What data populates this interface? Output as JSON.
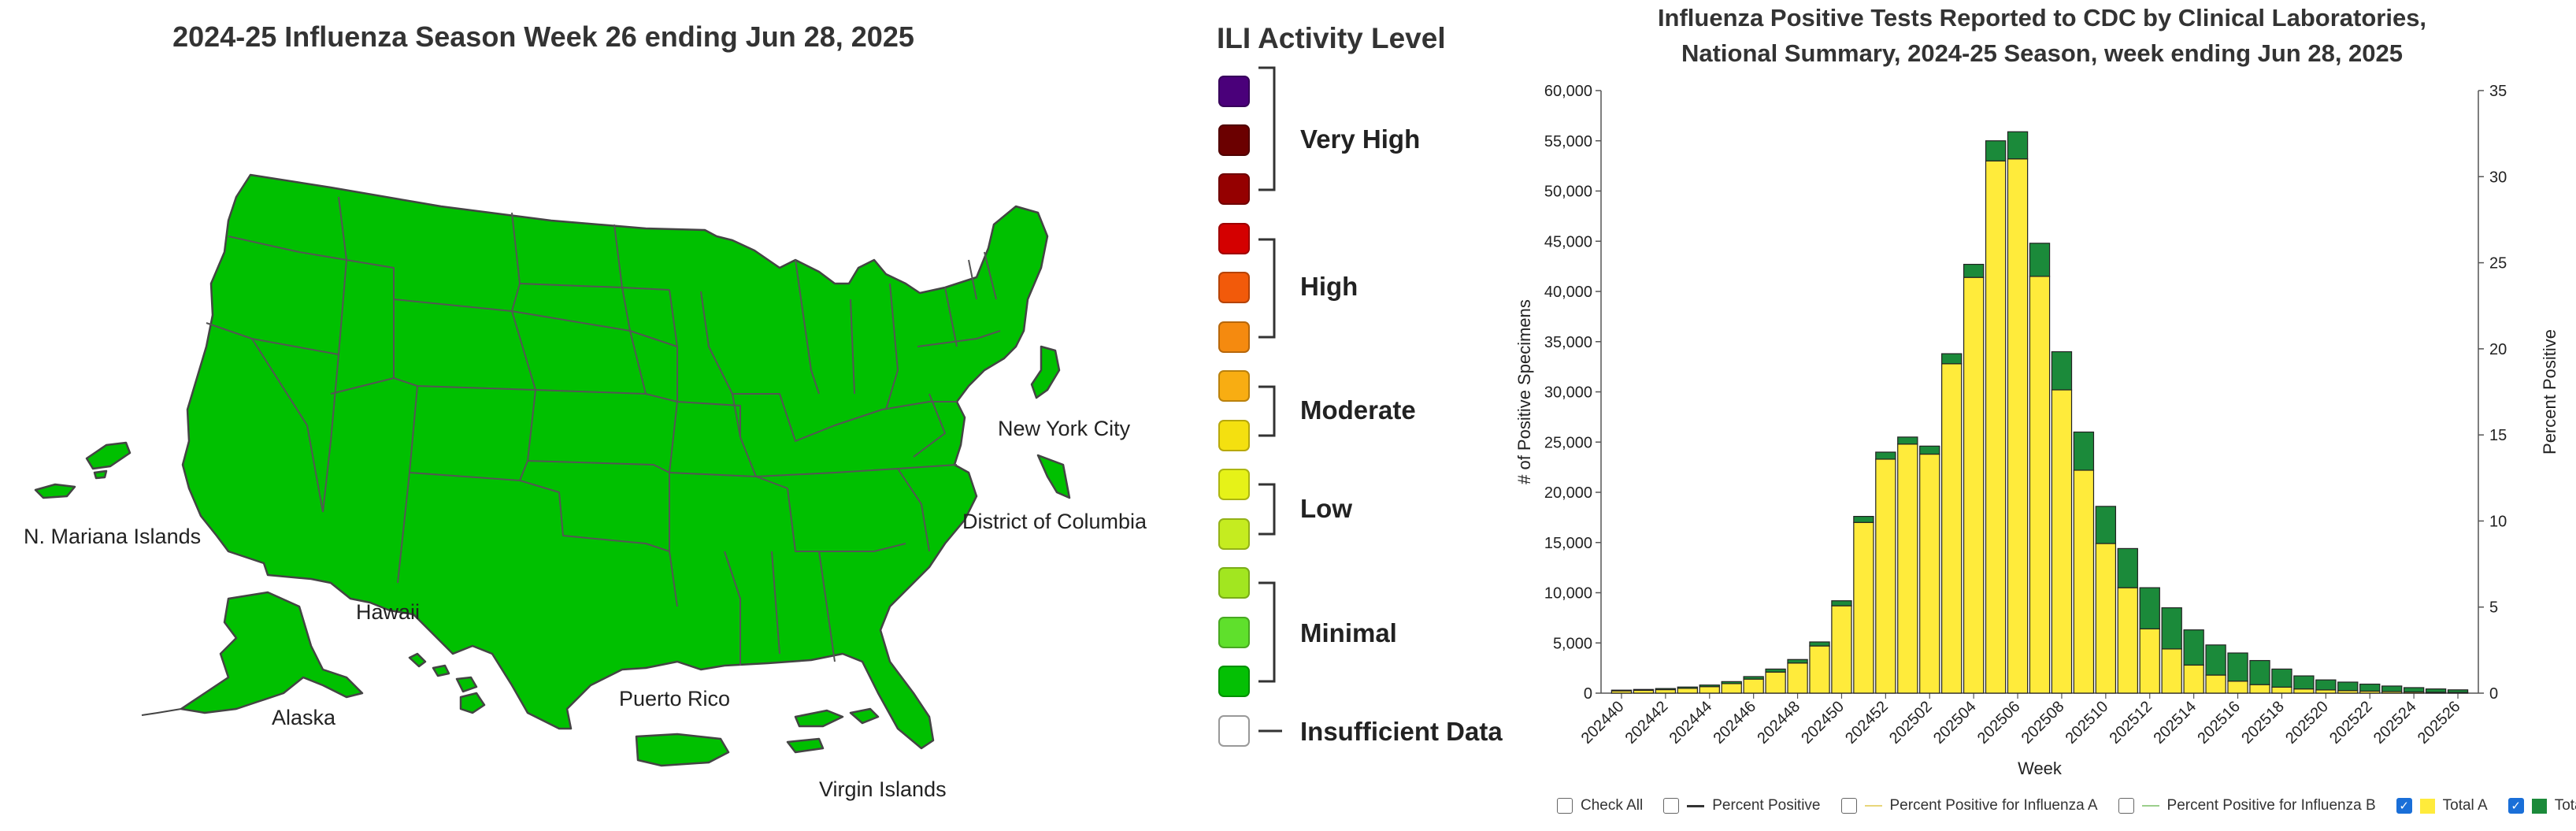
{
  "map": {
    "title": "2024-25 Influenza Season Week 26 ending Jun 28, 2025",
    "fill_color": "#00c000",
    "labels": {
      "mariana": "N. Mariana Islands",
      "hawaii": "Hawaii",
      "alaska": "Alaska",
      "puerto_rico": "Puerto Rico",
      "virgin_islands": "Virgin Islands",
      "nyc": "New York City",
      "dc": "District of Columbia"
    }
  },
  "legend": {
    "title": "ILI Activity Level",
    "swatches": [
      {
        "color": "#4a007a"
      },
      {
        "color": "#6b0000"
      },
      {
        "color": "#950000"
      },
      {
        "color": "#d40000"
      },
      {
        "color": "#f25a0a"
      },
      {
        "color": "#f58a0f"
      },
      {
        "color": "#f8ad12"
      },
      {
        "color": "#f4e010"
      },
      {
        "color": "#e6f218"
      },
      {
        "color": "#c5ec20"
      },
      {
        "color": "#a2e620"
      },
      {
        "color": "#5fe02c"
      },
      {
        "color": "#04c004"
      },
      {
        "color": "#ffffff"
      }
    ],
    "groups": {
      "very_high": "Very High",
      "high": "High",
      "moderate": "Moderate",
      "low": "Low",
      "minimal": "Minimal",
      "insufficient": "Insufficient Data"
    }
  },
  "chart": {
    "title_line1": "Influenza Positive Tests Reported to CDC by Clinical Laboratories,",
    "title_line2": "National Summary, 2024-25 Season, week ending Jun 28, 2025",
    "checkboxes": {
      "check_all": "Check All",
      "pct_positive": "Percent Positive",
      "pct_a": "Percent Positive for Influenza A",
      "pct_b": "Percent Positive for Influenza B",
      "total_a": "Total A",
      "total_b": "Total B"
    },
    "colors": {
      "total_a": "#ffeb3b",
      "total_b": "#1b8a3a",
      "pct_line": "#333333",
      "pct_a_line": "#e8d67a",
      "pct_b_line": "#9ccf8c"
    }
  },
  "chart_data": {
    "type": "bar",
    "stacked": true,
    "xlabel": "Week",
    "ylabel": "# of Positive Specimens",
    "y2label": "Percent Positive",
    "ylim": [
      0,
      60000
    ],
    "y2lim": [
      0,
      35
    ],
    "yticks": [
      "0",
      "5,000",
      "10,000",
      "15,000",
      "20,000",
      "25,000",
      "30,000",
      "35,000",
      "40,000",
      "45,000",
      "50,000",
      "55,000",
      "60,000"
    ],
    "y2ticks": [
      "0",
      "5",
      "10",
      "15",
      "20",
      "25",
      "30",
      "35"
    ],
    "categories": [
      "202440",
      "202441",
      "202442",
      "202443",
      "202444",
      "202445",
      "202446",
      "202447",
      "202448",
      "202449",
      "202450",
      "202451",
      "202452",
      "202501",
      "202502",
      "202503",
      "202504",
      "202505",
      "202506",
      "202507",
      "202508",
      "202509",
      "202510",
      "202511",
      "202512",
      "202513",
      "202514",
      "202515",
      "202516",
      "202517",
      "202518",
      "202519",
      "202520",
      "202521",
      "202522",
      "202523",
      "202524",
      "202525",
      "202526"
    ],
    "xtick_labels": [
      "202440",
      "202442",
      "202444",
      "202446",
      "202448",
      "202450",
      "202452",
      "202502",
      "202504",
      "202506",
      "202508",
      "202510",
      "202512",
      "202514",
      "202516",
      "202518",
      "202520",
      "202522",
      "202524",
      "202526"
    ],
    "series": [
      {
        "name": "Total A",
        "values": [
          230,
          280,
          350,
          480,
          650,
          950,
          1400,
          2100,
          3000,
          4700,
          8700,
          17000,
          23300,
          24800,
          23800,
          32800,
          41400,
          53000,
          53200,
          41500,
          30200,
          22200,
          14900,
          10500,
          6400,
          4400,
          2800,
          1800,
          1200,
          850,
          600,
          420,
          320,
          250,
          200,
          160,
          120,
          90,
          70
        ]
      },
      {
        "name": "Total B",
        "values": [
          70,
          90,
          110,
          130,
          160,
          200,
          250,
          300,
          350,
          400,
          500,
          600,
          700,
          700,
          800,
          1000,
          1300,
          2000,
          2700,
          3300,
          3800,
          3800,
          3700,
          3900,
          4100,
          4100,
          3500,
          3000,
          2800,
          2400,
          1800,
          1300,
          1000,
          850,
          700,
          550,
          430,
          330,
          260
        ]
      }
    ]
  }
}
